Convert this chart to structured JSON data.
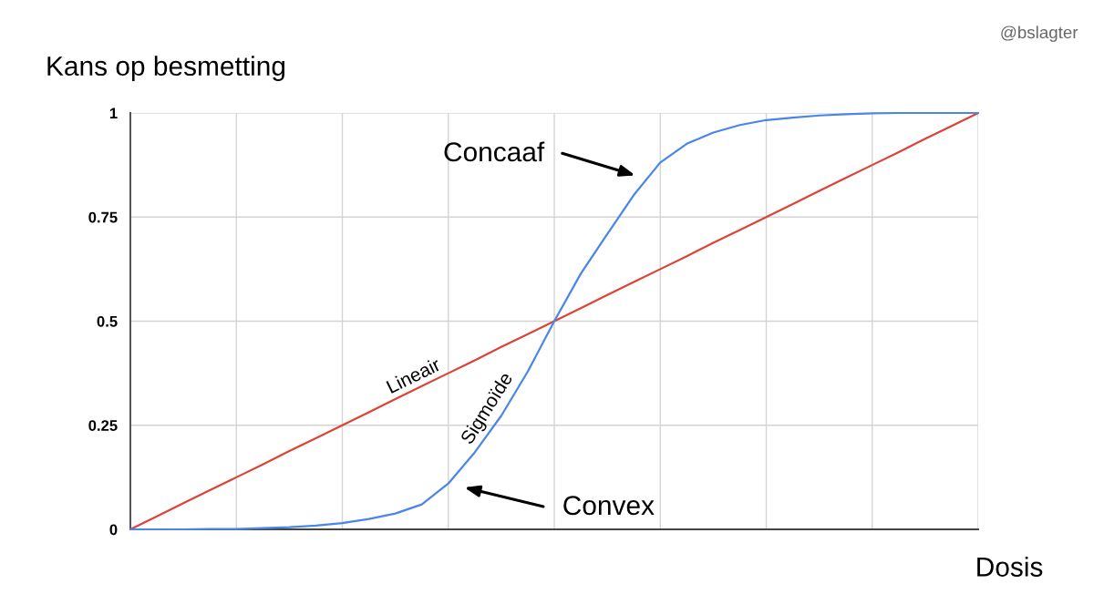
{
  "chart_data": {
    "type": "line",
    "ylabel": "Kans op besmetting",
    "xlabel": "Dosis",
    "categories": [
      null,
      null,
      null,
      null,
      null,
      null,
      null,
      null,
      null,
      null,
      null,
      null,
      null,
      null,
      null,
      null,
      null,
      null,
      null,
      null,
      null,
      null,
      null,
      null,
      null,
      null,
      null,
      null,
      null,
      null,
      null,
      null,
      null
    ],
    "series": [
      {
        "name": "Lineair",
        "color": "#db4437",
        "values": [
          0,
          0.031,
          0.063,
          0.094,
          0.125,
          0.156,
          0.188,
          0.219,
          0.25,
          0.281,
          0.313,
          0.344,
          0.375,
          0.406,
          0.438,
          0.469,
          0.5,
          0.531,
          0.563,
          0.594,
          0.625,
          0.656,
          0.688,
          0.719,
          0.75,
          0.781,
          0.813,
          0.844,
          0.875,
          0.906,
          0.938,
          0.969,
          1
        ]
      },
      {
        "name": "Sigmoïde",
        "color": "#4a86e8",
        "values": [
          0,
          0,
          0,
          0.001,
          0.001,
          0.003,
          0.005,
          0.009,
          0.015,
          0.025,
          0.038,
          0.06,
          0.11,
          0.185,
          0.273,
          0.379,
          0.5,
          0.614,
          0.709,
          0.803,
          0.881,
          0.926,
          0.953,
          0.971,
          0.983,
          0.989,
          0.994,
          0.997,
          0.999,
          1,
          1,
          1,
          1
        ]
      }
    ],
    "ylim": [
      0,
      1
    ],
    "yticks": [
      0,
      0.25,
      0.5,
      0.75,
      1
    ],
    "grid": true,
    "tick_labels": "y",
    "annotations": [
      "Concaaf",
      "Convex",
      "@bslagter"
    ]
  }
}
